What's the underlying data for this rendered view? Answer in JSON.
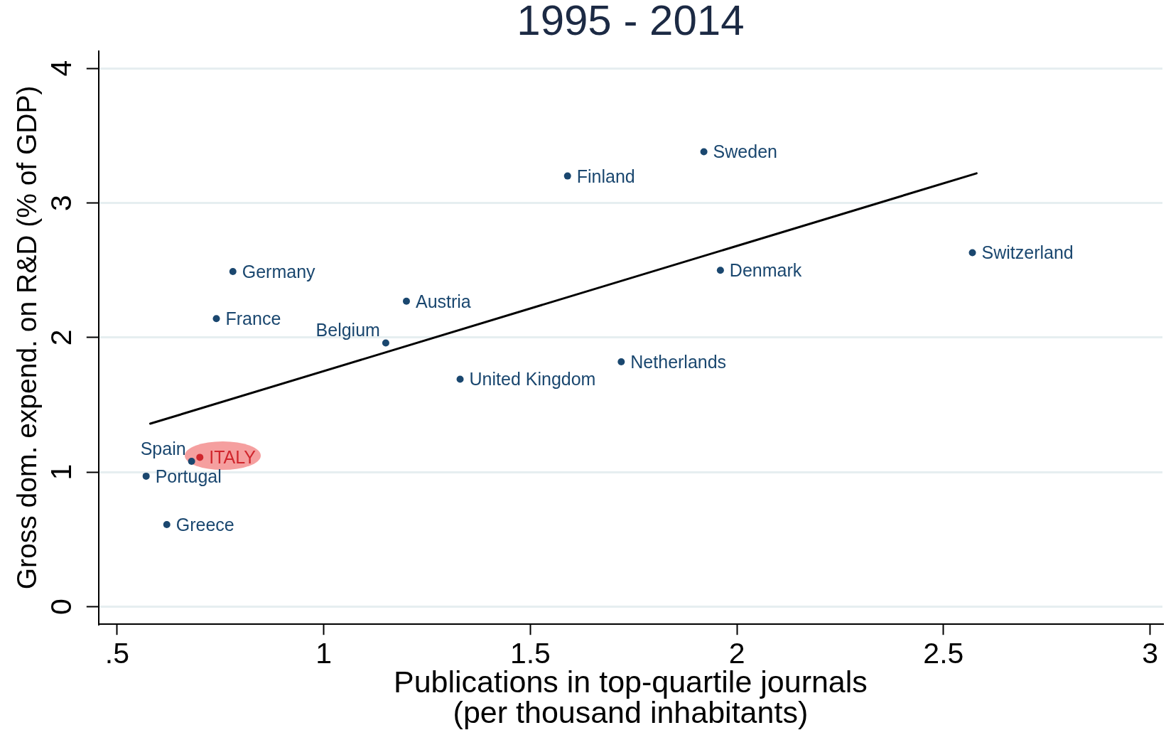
{
  "chart_data": {
    "type": "scatter",
    "title": "1995 - 2014",
    "xlabel": "Publications in top-quartile journals\n(per thousand inhabitants)",
    "ylabel": "Gross dom. expend. on R&D (% of GDP)",
    "xlim": [
      0.455,
      3.03
    ],
    "ylim": [
      -0.13,
      4.13
    ],
    "xticks": [
      {
        "value": 0.5,
        "label": ".5"
      },
      1,
      1.5,
      2,
      2.5,
      3
    ],
    "yticks": [
      0,
      1,
      2,
      3,
      4
    ],
    "grid": "y",
    "marker": "circle",
    "series": [
      {
        "color": "#1a476f",
        "x": [
          0.57,
          0.62,
          0.68,
          0.74,
          0.78,
          1.15,
          1.2,
          1.33,
          1.59,
          1.72,
          1.92,
          1.96,
          2.57
        ],
        "values": [
          0.97,
          0.61,
          1.08,
          2.14,
          2.49,
          1.96,
          2.27,
          1.69,
          3.2,
          1.82,
          3.38,
          2.5,
          2.63
        ]
      },
      {
        "color": "#d0262d",
        "x": [
          0.7
        ],
        "values": [
          1.11
        ]
      },
      {
        "type": "line",
        "color": "#000000",
        "marker": "none",
        "x": [
          0.58,
          2.58
        ],
        "values": [
          1.36,
          3.22
        ]
      }
    ],
    "annotations": [
      {
        "text": "Portugal",
        "x": 0.57,
        "y": 0.97
      },
      {
        "text": "Greece",
        "x": 0.62,
        "y": 0.61
      },
      {
        "text": "Spain",
        "x": 0.68,
        "y": 1.08
      },
      {
        "text": "ITALY",
        "x": 0.7,
        "y": 1.11
      },
      {
        "text": "France",
        "x": 0.74,
        "y": 2.14
      },
      {
        "text": "Germany",
        "x": 0.78,
        "y": 2.49
      },
      {
        "text": "Belgium",
        "x": 1.15,
        "y": 1.96
      },
      {
        "text": "Austria",
        "x": 1.2,
        "y": 2.27
      },
      {
        "text": "United Kingdom",
        "x": 1.33,
        "y": 1.69
      },
      {
        "text": "Finland",
        "x": 1.59,
        "y": 3.2
      },
      {
        "text": "Netherlands",
        "x": 1.72,
        "y": 1.82
      },
      {
        "text": "Sweden",
        "x": 1.92,
        "y": 3.38
      },
      {
        "text": "Denmark",
        "x": 1.96,
        "y": 2.5
      },
      {
        "text": "Switzerland",
        "x": 2.57,
        "y": 2.63
      }
    ]
  }
}
